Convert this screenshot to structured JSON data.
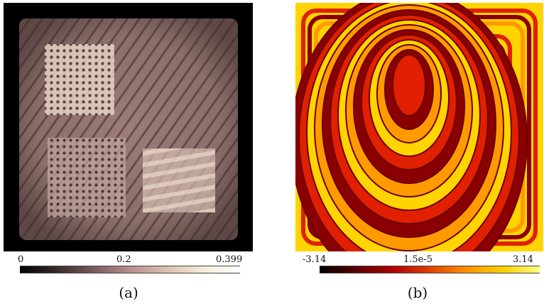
{
  "panel_a": {
    "caption": "(a)",
    "colorbar": {
      "min_label": "0",
      "mid_label": "0.2",
      "max_label": "0.399",
      "stops": [
        "#000000",
        "#3a2a2a",
        "#7a5a5a",
        "#b78e8e",
        "#dcc0b0",
        "#f4ecd8",
        "#ffffff"
      ]
    },
    "background": "#000000",
    "tint": "#b89a92"
  },
  "panel_b": {
    "caption": "(b)",
    "colorbar": {
      "min_label": "-3.14",
      "mid_label": "1.5e-5",
      "max_label": "3.14",
      "stops": [
        "#000000",
        "#5a0000",
        "#b00000",
        "#e04000",
        "#ff9000",
        "#ffd000",
        "#ffff80"
      ]
    },
    "band_colors": [
      "#ffd400",
      "#e02000",
      "#8a0000",
      "#ff9a00"
    ]
  }
}
